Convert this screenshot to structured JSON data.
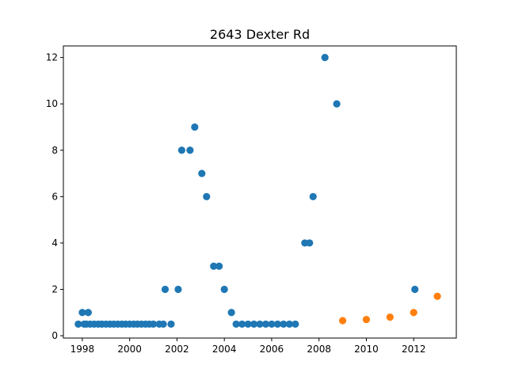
{
  "chart_data": {
    "type": "scatter",
    "title": "2643 Dexter Rd",
    "xlabel": "",
    "ylabel": "",
    "xlim": [
      1997.2,
      2013.8
    ],
    "ylim": [
      -0.1,
      12.5
    ],
    "xticks": [
      1998,
      2000,
      2002,
      2004,
      2006,
      2008,
      2010,
      2012
    ],
    "xtick_labels": [
      "1998",
      "2000",
      "2002",
      "2004",
      "2006",
      "2008",
      "2010",
      "2012"
    ],
    "yticks": [
      0,
      2,
      4,
      6,
      8,
      10,
      12
    ],
    "ytick_labels": [
      "0",
      "2",
      "4",
      "6",
      "8",
      "10",
      "12"
    ],
    "grid": false,
    "series": [
      {
        "color": "#1f77b4",
        "points": [
          [
            1997.83,
            0.5
          ],
          [
            1998.0,
            1.0
          ],
          [
            1998.08,
            0.5
          ],
          [
            1998.17,
            0.5
          ],
          [
            1998.25,
            1.0
          ],
          [
            1998.33,
            0.5
          ],
          [
            1998.5,
            0.5
          ],
          [
            1998.67,
            0.5
          ],
          [
            1998.83,
            0.5
          ],
          [
            1999.0,
            0.5
          ],
          [
            1999.17,
            0.5
          ],
          [
            1999.33,
            0.5
          ],
          [
            1999.5,
            0.5
          ],
          [
            1999.67,
            0.5
          ],
          [
            1999.83,
            0.5
          ],
          [
            2000.0,
            0.5
          ],
          [
            2000.17,
            0.5
          ],
          [
            2000.33,
            0.5
          ],
          [
            2000.5,
            0.5
          ],
          [
            2000.67,
            0.5
          ],
          [
            2000.83,
            0.5
          ],
          [
            2001.0,
            0.5
          ],
          [
            2001.25,
            0.5
          ],
          [
            2001.42,
            0.5
          ],
          [
            2001.5,
            2.0
          ],
          [
            2001.75,
            0.5
          ],
          [
            2002.05,
            2.0
          ],
          [
            2002.2,
            8.0
          ],
          [
            2002.55,
            8.0
          ],
          [
            2002.75,
            9.0
          ],
          [
            2003.05,
            7.0
          ],
          [
            2003.25,
            6.0
          ],
          [
            2003.55,
            3.0
          ],
          [
            2003.78,
            3.0
          ],
          [
            2004.0,
            2.0
          ],
          [
            2004.3,
            1.0
          ],
          [
            2004.5,
            0.5
          ],
          [
            2004.75,
            0.5
          ],
          [
            2005.0,
            0.5
          ],
          [
            2005.25,
            0.5
          ],
          [
            2005.5,
            0.5
          ],
          [
            2005.75,
            0.5
          ],
          [
            2006.0,
            0.5
          ],
          [
            2006.25,
            0.5
          ],
          [
            2006.5,
            0.5
          ],
          [
            2006.75,
            0.5
          ],
          [
            2007.0,
            0.5
          ],
          [
            2007.4,
            4.0
          ],
          [
            2007.6,
            4.0
          ],
          [
            2007.75,
            6.0
          ],
          [
            2008.25,
            12.0
          ],
          [
            2008.75,
            10.0
          ],
          [
            2012.05,
            2.0
          ]
        ]
      },
      {
        "color": "#ff7f0e",
        "points": [
          [
            2009.0,
            0.65
          ],
          [
            2010.0,
            0.7
          ],
          [
            2011.0,
            0.8
          ],
          [
            2012.0,
            1.0
          ],
          [
            2013.0,
            1.7
          ]
        ]
      }
    ]
  }
}
